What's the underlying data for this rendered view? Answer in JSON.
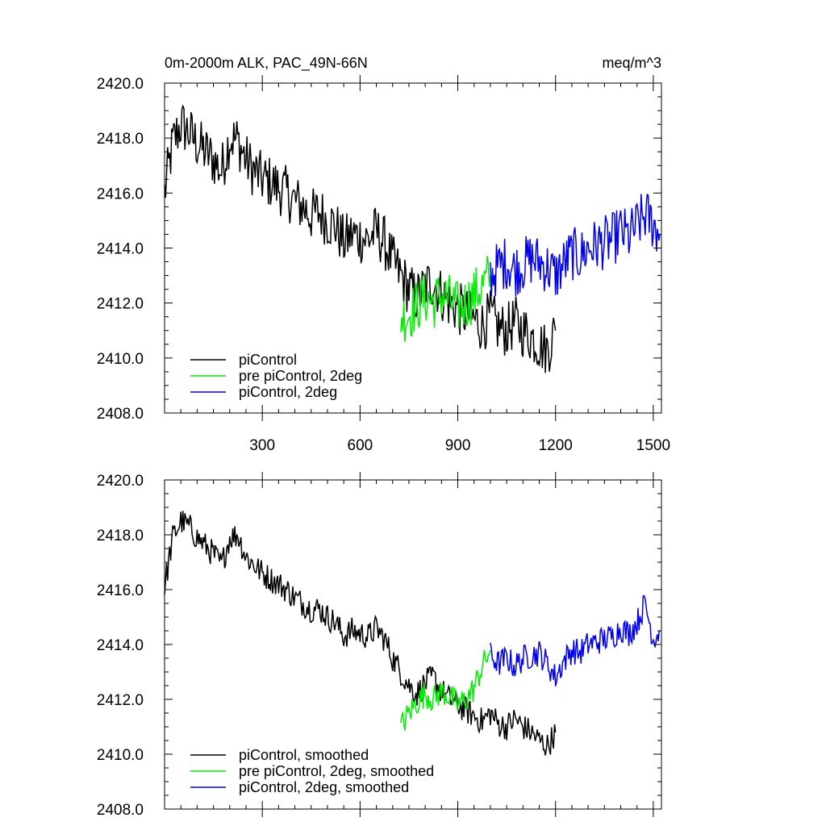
{
  "chart_data": [
    {
      "type": "line",
      "title": "0m-2000m ALK, PAC_49N-66N",
      "units": "meq/m^3",
      "xlim": [
        0,
        1525
      ],
      "ylim": [
        2408,
        2420
      ],
      "xticks": [
        300,
        600,
        900,
        1200,
        1500
      ],
      "xtick_labels": [
        "300",
        "600",
        "900",
        "1200",
        "1500"
      ],
      "yticks": [
        2408,
        2410,
        2412,
        2414,
        2416,
        2418,
        2420
      ],
      "ytick_labels": [
        "2408.0",
        "2410.0",
        "2412.0",
        "2414.0",
        "2416.0",
        "2418.0",
        "2420.0"
      ],
      "legend_position": "bottom-left",
      "series": [
        {
          "name": "piControl",
          "color": "#000000",
          "x": [
            0,
            25,
            50,
            75,
            100,
            125,
            150,
            175,
            200,
            225,
            250,
            275,
            300,
            325,
            350,
            375,
            400,
            425,
            450,
            475,
            500,
            525,
            550,
            575,
            600,
            625,
            650,
            675,
            700,
            725,
            750,
            775,
            800,
            825,
            850,
            875,
            900,
            925,
            950,
            975,
            1000,
            1025,
            1050,
            1075,
            1100,
            1125,
            1150,
            1175,
            1200
          ],
          "y": [
            2416.0,
            2417.8,
            2418.5,
            2418.2,
            2417.8,
            2417.5,
            2417.2,
            2416.8,
            2418.0,
            2417.9,
            2417.2,
            2416.8,
            2416.5,
            2416.4,
            2416.2,
            2416.0,
            2415.7,
            2415.5,
            2415.2,
            2415.3,
            2415.0,
            2414.8,
            2414.2,
            2414.5,
            2414.4,
            2414.3,
            2414.6,
            2414.2,
            2413.5,
            2413.0,
            2412.5,
            2412.2,
            2412.6,
            2412.8,
            2412.3,
            2412.0,
            2411.8,
            2411.6,
            2411.4,
            2411.2,
            2411.5,
            2411.1,
            2411.0,
            2411.3,
            2411.0,
            2410.8,
            2410.5,
            2410.3,
            2411.0
          ],
          "noise_amplitude": 1.0
        },
        {
          "name": "pre piControl, 2deg",
          "color": "#00ee00",
          "x": [
            725,
            750,
            775,
            800,
            825,
            850,
            875,
            900,
            925,
            950,
            975,
            1000
          ],
          "y": [
            2411.5,
            2411.6,
            2411.9,
            2412.2,
            2412.0,
            2412.3,
            2412.1,
            2411.8,
            2412.0,
            2412.3,
            2412.6,
            2413.0
          ],
          "noise_amplitude": 1.0
        },
        {
          "name": "piControl, 2deg",
          "color": "#0000ee",
          "x": [
            1000,
            1025,
            1050,
            1075,
            1100,
            1125,
            1150,
            1175,
            1200,
            1225,
            1250,
            1275,
            1300,
            1325,
            1350,
            1375,
            1400,
            1425,
            1450,
            1475,
            1500,
            1520
          ],
          "y": [
            2413.0,
            2413.3,
            2413.5,
            2413.2,
            2413.4,
            2413.6,
            2413.5,
            2413.3,
            2413.0,
            2413.4,
            2413.8,
            2413.7,
            2414.0,
            2414.1,
            2414.2,
            2414.3,
            2414.6,
            2414.4,
            2414.8,
            2415.2,
            2414.9,
            2414.5
          ],
          "noise_amplitude": 1.0
        }
      ]
    },
    {
      "type": "line",
      "title": "",
      "units": "",
      "xlim": [
        0,
        1525
      ],
      "ylim": [
        2408,
        2420
      ],
      "xticks": [
        300,
        600,
        900,
        1200,
        1500
      ],
      "xtick_labels": [],
      "yticks": [
        2408,
        2410,
        2412,
        2414,
        2416,
        2418,
        2420
      ],
      "ytick_labels": [
        "2408.0",
        "2410.0",
        "2412.0",
        "2414.0",
        "2416.0",
        "2418.0",
        "2420.0"
      ],
      "legend_position": "bottom-left",
      "series": [
        {
          "name": "piControl, smoothed",
          "color": "#000000",
          "x": [
            0,
            25,
            50,
            75,
            100,
            125,
            150,
            175,
            200,
            225,
            250,
            275,
            300,
            325,
            350,
            375,
            400,
            425,
            450,
            475,
            500,
            525,
            550,
            575,
            600,
            625,
            650,
            675,
            700,
            725,
            750,
            775,
            800,
            825,
            850,
            875,
            900,
            925,
            950,
            975,
            1000,
            1025,
            1050,
            1075,
            1100,
            1125,
            1150,
            1175,
            1200
          ],
          "y": [
            2416.1,
            2417.9,
            2418.5,
            2418.3,
            2417.9,
            2417.6,
            2417.3,
            2416.9,
            2417.9,
            2418.0,
            2417.2,
            2416.9,
            2416.6,
            2416.4,
            2416.2,
            2416.0,
            2415.7,
            2415.5,
            2415.3,
            2415.3,
            2415.0,
            2414.8,
            2414.3,
            2414.5,
            2414.4,
            2414.3,
            2414.6,
            2414.2,
            2413.5,
            2413.0,
            2412.5,
            2412.2,
            2412.6,
            2412.8,
            2412.3,
            2412.0,
            2411.8,
            2411.6,
            2411.4,
            2411.2,
            2411.5,
            2411.1,
            2411.0,
            2411.3,
            2411.0,
            2410.8,
            2410.5,
            2410.3,
            2410.8
          ],
          "noise_amplitude": 0.5
        },
        {
          "name": "pre piControl, 2deg, smoothed",
          "color": "#00ee00",
          "x": [
            725,
            750,
            775,
            800,
            825,
            850,
            875,
            900,
            925,
            950,
            975,
            1000
          ],
          "y": [
            2411.0,
            2411.5,
            2411.9,
            2412.2,
            2412.0,
            2412.3,
            2412.1,
            2411.8,
            2412.0,
            2412.4,
            2413.2,
            2413.8
          ],
          "noise_amplitude": 0.5
        },
        {
          "name": "piControl, 2deg, smoothed",
          "color": "#0000ee",
          "x": [
            1000,
            1025,
            1050,
            1075,
            1100,
            1125,
            1150,
            1175,
            1200,
            1225,
            1250,
            1275,
            1300,
            1325,
            1350,
            1375,
            1400,
            1425,
            1450,
            1475,
            1500,
            1520
          ],
          "y": [
            2413.6,
            2413.3,
            2413.5,
            2413.2,
            2413.5,
            2413.6,
            2413.7,
            2413.3,
            2412.8,
            2413.4,
            2413.8,
            2413.7,
            2414.0,
            2414.1,
            2414.2,
            2414.3,
            2414.6,
            2414.4,
            2414.8,
            2415.5,
            2414.2,
            2414.5
          ],
          "noise_amplitude": 0.5
        }
      ]
    }
  ]
}
